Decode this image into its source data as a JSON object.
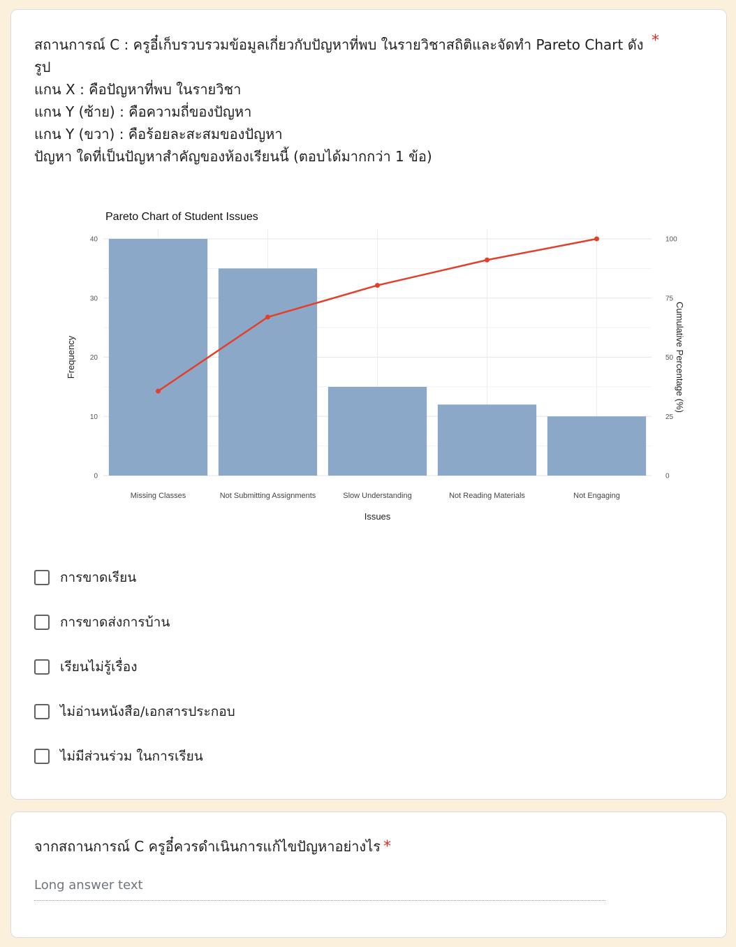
{
  "question1": {
    "text": "สถานการณ์ C : ครูอี๋เก็บรวบรวมข้อมูลเกี่ยวกับปัญหาที่พบ ในรายวิชาสถิติและจัดทำ Pareto Chart ดังรูป\nแกน X : คือปัญหาที่พบ ในรายวิชา\nแกน Y (ซ้าย) : คือความถี่ของปัญหา\nแกน Y (ขวา) : คือร้อยละสะสมของปัญหา\nปัญหา ใดที่เป็นปัญหาสำคัญของห้องเรียนนี้ (ตอบได้มากกว่า 1 ข้อ)",
    "required_mark": "*",
    "options": [
      "การขาดเรียน",
      "การขาดส่งการบ้าน",
      "เรียนไม่รู้เรื่อง",
      "ไม่อ่านหนังสือ/เอกสารประกอบ",
      "ไม่มีส่วนร่วม ในการเรียน"
    ]
  },
  "question2": {
    "text": "จากสถานการณ์ C ครูอี๋ควรดำเนินการแก้ไขปัญหาอย่างไร",
    "required_mark": "*",
    "placeholder": "Long answer text"
  },
  "colors": {
    "bar": "#8ca8c8",
    "line": "#e2402b",
    "required": "#d93025",
    "background": "#fbf0dc"
  },
  "chart_data": {
    "type": "bar",
    "title": "Pareto Chart of Student Issues",
    "xlabel": "Issues",
    "ylabel": "Frequency",
    "y2label": "Cumulative Percentage (%)",
    "categories": [
      "Missing Classes",
      "Not Submitting Assignments",
      "Slow Understanding",
      "Not Reading Materials",
      "Not Engaging"
    ],
    "values": [
      40,
      35,
      15,
      12,
      10
    ],
    "ylim": [
      0,
      40
    ],
    "yticks": [
      0,
      10,
      20,
      30,
      40
    ],
    "y2lim": [
      0,
      100
    ],
    "y2ticks": [
      0,
      25,
      50,
      75,
      100
    ],
    "cumulative": [
      35.7,
      66.96,
      80.36,
      91.07,
      100
    ],
    "grid": true
  }
}
